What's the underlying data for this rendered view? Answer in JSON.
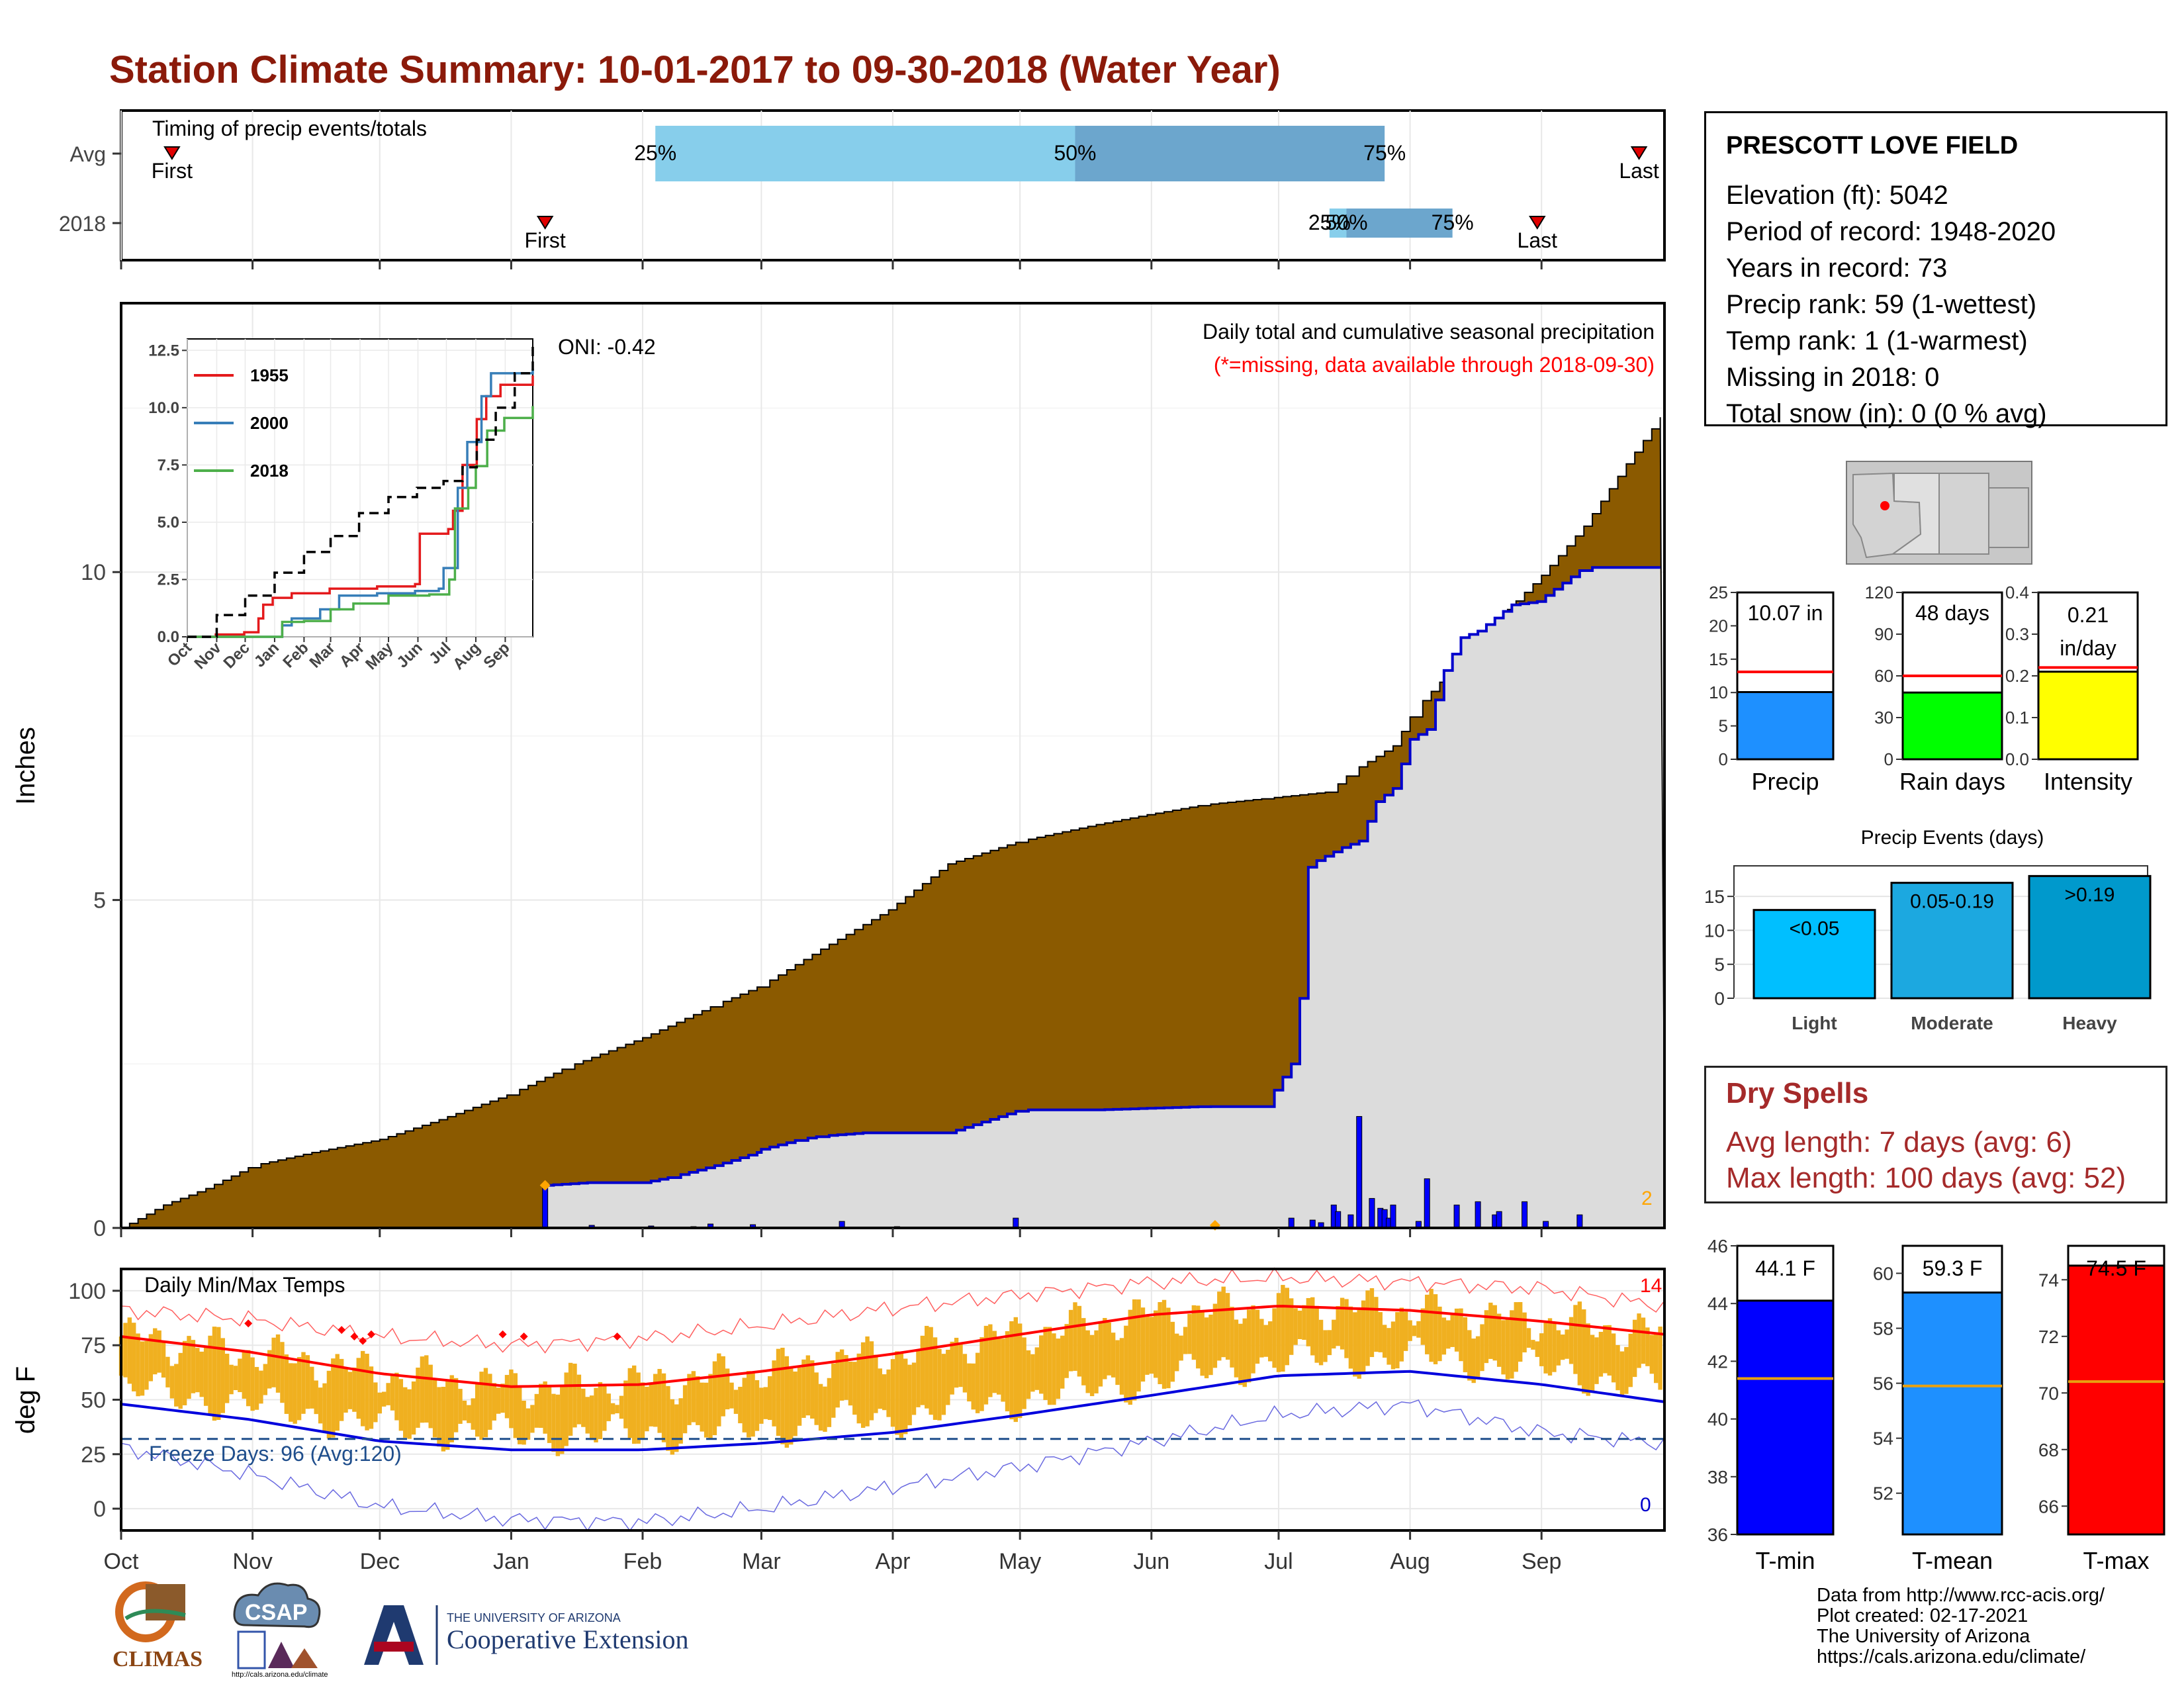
{
  "header": {
    "title": "Station Climate Summary: 10-01-2017 to 09-30-2018 (Water Year)"
  },
  "timing_panel": {
    "label": "Timing of precip events/totals",
    "rows": [
      {
        "name": "Avg",
        "first_label": "First",
        "last_label": "Last",
        "first_day": 12,
        "last_day": 358,
        "p25_day": 126,
        "p50_day": 225,
        "p75_day": 298,
        "p25_label": "25%",
        "p50_label": "50%",
        "p75_label": "75%"
      },
      {
        "name": "2018",
        "first_label": "First",
        "last_label": "Last",
        "first_day": 100,
        "last_day": 334,
        "p25_day": 285,
        "p50_day": 289,
        "p75_day": 314,
        "p25_label": "25%",
        "p50_label": "50%",
        "p75_label": "75%"
      }
    ]
  },
  "precip_panel": {
    "ylabel": "Inches",
    "ytick_labels": [
      "0",
      "5",
      "10"
    ],
    "caption": "Daily total and cumulative seasonal precipitation",
    "missing_note": "(*=missing, data available through 2018-09-30)",
    "oni_label": "ONI: -0.42",
    "missing_count": "2",
    "avg_total": 12.45,
    "obs_total": 10.07
  },
  "temp_panel": {
    "ylabel": "deg F",
    "label": "Daily Min/Max Temps",
    "freeze_label": "Freeze Days: 96 (Avg:120)",
    "freeze_line": 32,
    "max_missing": "14",
    "min_missing": "0",
    "ytick_labels": [
      "0",
      "25",
      "50",
      "75",
      "100"
    ]
  },
  "months": [
    "Oct",
    "Nov",
    "Dec",
    "Jan",
    "Feb",
    "Mar",
    "Apr",
    "May",
    "Jun",
    "Jul",
    "Aug",
    "Sep"
  ],
  "station": {
    "name": "PRESCOTT LOVE FIELD",
    "lines": [
      "Elevation (ft): 5042",
      "Period of record: 1948-2020",
      "Years in record: 73",
      "Precip rank: 59 (1-wettest)",
      "Temp rank: 1 (1-warmest)",
      "Missing in 2018: 0",
      "Total snow (in): 0 (0 % avg)"
    ]
  },
  "small_bars": [
    {
      "name": "Precip",
      "value_label": "10.07 in",
      "value": 10.07,
      "avg": 13.1,
      "ymax": 25,
      "ticks": [
        "0",
        "5",
        "10",
        "15",
        "20",
        "25"
      ],
      "color": "#1E90FF"
    },
    {
      "name": "Rain days",
      "value_label": "48 days",
      "value": 48,
      "avg": 60,
      "ymax": 120,
      "ticks": [
        "0",
        "30",
        "60",
        "90",
        "120"
      ],
      "color": "#00FF00"
    },
    {
      "name": "Intensity",
      "value_label": "0.21 in/day",
      "value_label_line1": "0.21",
      "value_label_line2": "in/day",
      "value": 0.21,
      "avg": 0.22,
      "ymax": 0.4,
      "ticks": [
        "0.0",
        "0.1",
        "0.2",
        "0.3",
        "0.4"
      ],
      "color": "#FFFF00"
    }
  ],
  "events_chart": {
    "title": "Precip Events (days)",
    "ticks": [
      "0",
      "5",
      "10",
      "15"
    ],
    "bars": [
      {
        "category": "Light",
        "label": "<0.05",
        "value": 13,
        "color": "#00BFFF"
      },
      {
        "category": "Moderate",
        "label": "0.05-0.19",
        "value": 17,
        "color": "#1CA8E0"
      },
      {
        "category": "Heavy",
        "label": ">0.19",
        "value": 18,
        "color": "#0099CC"
      }
    ]
  },
  "dry_spells": {
    "title": "Dry Spells",
    "avg_line": "Avg length: 7 days (avg: 6)",
    "max_line": "Max length: 100 days (avg: 52)"
  },
  "temp_bars": [
    {
      "name": "T-min",
      "value_label": "44.1 F",
      "value": 44.1,
      "avg": 41.4,
      "ymin": 36,
      "ymax": 46,
      "ticks": [
        "36",
        "38",
        "40",
        "42",
        "44",
        "46"
      ],
      "color": "#0000FF"
    },
    {
      "name": "T-mean",
      "value_label": "59.3 F",
      "value": 59.3,
      "avg": 55.9,
      "ymin": 50.5,
      "ymax": 61,
      "ticks": [
        "52",
        "54",
        "56",
        "58",
        "60"
      ],
      "color": "#1E90FF"
    },
    {
      "name": "T-max",
      "value_label": "74.5 F",
      "value": 74.5,
      "avg": 70.4,
      "ymin": 65,
      "ymax": 75.2,
      "ticks": [
        "66",
        "68",
        "70",
        "72",
        "74"
      ],
      "color": "#FF0000"
    }
  ],
  "credits": [
    "Data from http://www.rcc-acis.org/",
    "Plot created: 02-17-2021",
    "The University of Arizona",
    "https://cals.arizona.edu/climate/"
  ],
  "logos": {
    "climas": "CLIMAS",
    "csap": "CSAP",
    "csap_url": "http://cals.arizona.edu/climate",
    "ua_small": "THE UNIVERSITY OF ARIZONA",
    "ua_big": "Cooperative Extension"
  },
  "chart_data": [
    {
      "type": "area",
      "title": "Daily total and cumulative seasonal precipitation",
      "ylabel": "Inches",
      "ylim": [
        0,
        14.1
      ],
      "x_unit": "day of water year (Oct 1 = 0)",
      "series": [
        {
          "name": "Average cumulative",
          "x": [
            0,
            10,
            20,
            31,
            45,
            61,
            75,
            92,
            105,
            123,
            140,
            151,
            165,
            181,
            195,
            212,
            230,
            242,
            255,
            270,
            285,
            290,
            300,
            305,
            315,
            325,
            335,
            345,
            355,
            364
          ],
          "values": [
            0,
            0.35,
            0.6,
            0.95,
            1.15,
            1.35,
            1.65,
            2.05,
            2.45,
            2.9,
            3.4,
            3.7,
            4.25,
            4.85,
            5.55,
            5.9,
            6.15,
            6.3,
            6.45,
            6.55,
            6.65,
            6.95,
            7.35,
            7.9,
            8.6,
            9.3,
            9.95,
            10.7,
            11.65,
            12.45
          ]
        },
        {
          "name": "2018 cumulative",
          "x": [
            0,
            99,
            100,
            110,
            123,
            130,
            140,
            150,
            151,
            160,
            165,
            175,
            195,
            212,
            230,
            255,
            270,
            272,
            276,
            278,
            280,
            282,
            288,
            292,
            296,
            300,
            304,
            308,
            312,
            316,
            320,
            328,
            334,
            345,
            364
          ],
          "values": [
            0,
            0,
            0.65,
            0.69,
            0.69,
            0.78,
            0.95,
            1.15,
            1.2,
            1.35,
            1.4,
            1.45,
            1.45,
            1.8,
            1.8,
            1.85,
            1.85,
            2.1,
            2.5,
            3.5,
            5.5,
            5.6,
            5.8,
            5.9,
            6.5,
            6.7,
            7.45,
            7.6,
            8.5,
            9.0,
            9.1,
            9.5,
            9.55,
            10.07,
            10.07
          ]
        }
      ],
      "daily_bars": {
        "x": [
          100,
          111,
          125,
          135,
          139,
          149,
          170,
          183,
          211,
          276,
          281,
          283,
          286,
          287,
          290,
          292,
          295,
          297,
          298,
          299,
          300,
          306,
          308,
          315,
          320,
          324,
          325,
          331,
          336,
          344
        ],
        "values": [
          0.65,
          0.04,
          0.03,
          0.02,
          0.06,
          0.05,
          0.1,
          0.02,
          0.15,
          0.15,
          0.12,
          0.08,
          0.35,
          0.25,
          0.2,
          1.7,
          0.45,
          0.3,
          0.28,
          0.15,
          0.35,
          0.1,
          0.75,
          0.35,
          0.4,
          0.2,
          0.25,
          0.4,
          0.1,
          0.2
        ]
      },
      "inset": {
        "ylim": [
          0,
          13
        ],
        "ticks": [
          "0.0",
          "2.5",
          "5.0",
          "7.5",
          "10.0",
          "12.5"
        ],
        "months": [
          "Oct",
          "Nov",
          "Dec",
          "Jan",
          "Feb",
          "Mar",
          "Apr",
          "May",
          "Jun",
          "Jul",
          "Aug",
          "Sep"
        ],
        "series": [
          {
            "name": "1955",
            "color": "#E41A1C",
            "x": [
              0,
              30,
              60,
              75,
              80,
              90,
              110,
              150,
              200,
              240,
              245,
              275,
              280,
              290,
              305,
              315,
              330,
              364
            ],
            "values": [
              0,
              0.1,
              0.2,
              0.8,
              1.4,
              1.7,
              1.9,
              2.1,
              2.2,
              2.3,
              4.5,
              4.7,
              5.5,
              7.5,
              9.5,
              10.5,
              11.0,
              11.4
            ]
          },
          {
            "name": "2000",
            "color": "#377EB8",
            "x": [
              0,
              90,
              100,
              110,
              140,
              160,
              200,
              240,
              265,
              270,
              285,
              295,
              310,
              320,
              364
            ],
            "values": [
              0,
              0,
              0.5,
              0.8,
              1.2,
              1.8,
              1.9,
              2.0,
              2.1,
              3.0,
              6.5,
              8.5,
              10.5,
              11.5,
              11.7
            ]
          },
          {
            "name": "2018",
            "color": "#4DAF4A",
            "x": [
              0,
              99,
              100,
              123,
              151,
              175,
              212,
              255,
              270,
              276,
              282,
              296,
              304,
              316,
              334,
              364
            ],
            "values": [
              0,
              0,
              0.65,
              0.69,
              1.2,
              1.45,
              1.8,
              1.85,
              1.85,
              2.5,
              5.6,
              6.5,
              7.45,
              9.0,
              9.55,
              10.07
            ]
          },
          {
            "name": "Average",
            "color": "#000000",
            "x": [
              0,
              31,
              61,
              92,
              123,
              151,
              181,
              212,
              242,
              270,
              290,
              305,
              325,
              345,
              364
            ],
            "values": [
              0,
              0.95,
              1.8,
              2.8,
              3.7,
              4.4,
              5.4,
              6.1,
              6.5,
              6.8,
              7.4,
              8.6,
              10.0,
              11.5,
              12.8
            ]
          }
        ]
      }
    },
    {
      "type": "line",
      "title": "Daily Min/Max Temps",
      "ylabel": "deg F",
      "ylim": [
        -10,
        110
      ],
      "series": [
        {
          "name": "Avg Tmax",
          "x": [
            0,
            30,
            61,
            92,
            123,
            151,
            182,
            212,
            243,
            273,
            304,
            335,
            364
          ],
          "values": [
            79,
            72,
            62,
            56,
            57,
            63,
            71,
            80,
            89,
            93,
            91,
            86,
            80
          ]
        },
        {
          "name": "Avg Tmin",
          "x": [
            0,
            30,
            61,
            92,
            123,
            151,
            182,
            212,
            243,
            273,
            304,
            335,
            364
          ],
          "values": [
            48,
            41,
            31,
            27,
            27,
            30,
            35,
            43,
            52,
            61,
            63,
            57,
            49
          ]
        },
        {
          "name": "Record high",
          "x": [
            0,
            30,
            61,
            92,
            123,
            151,
            182,
            212,
            243,
            273,
            304,
            335,
            364
          ],
          "values": [
            91,
            87,
            79,
            75,
            78,
            84,
            92,
            98,
            104,
            106,
            104,
            101,
            93
          ]
        },
        {
          "name": "Record low",
          "x": [
            0,
            30,
            61,
            92,
            123,
            151,
            182,
            212,
            243,
            273,
            304,
            335,
            364
          ],
          "values": [
            28,
            16,
            1,
            -5,
            -6,
            0,
            10,
            19,
            31,
            43,
            48,
            35,
            30
          ]
        }
      ]
    },
    {
      "type": "bar",
      "title": "Precip Events (days)",
      "categories": [
        "Light",
        "Moderate",
        "Heavy"
      ],
      "values": [
        13,
        17,
        18
      ]
    }
  ]
}
